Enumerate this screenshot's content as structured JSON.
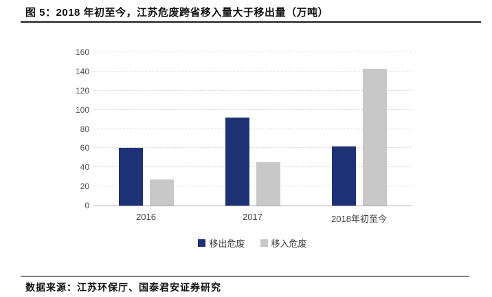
{
  "header": {
    "title": "图 5：2018 年初至今，江苏危废跨省移入量大于移出量（万吨）"
  },
  "footer": {
    "source": "数据来源：江苏环保厅、国泰君安证券研究"
  },
  "chart_data": {
    "type": "bar",
    "title": "2018 年初至今，江苏危废跨省移入量大于移出量（万吨）",
    "categories": [
      "2016",
      "2017",
      "2018年初至今"
    ],
    "series": [
      {
        "name": "移出危废",
        "color": "#1F3175",
        "values": [
          60,
          92,
          62
        ]
      },
      {
        "name": "移入危废",
        "color": "#C8C8C8",
        "values": [
          27,
          45,
          143
        ]
      }
    ],
    "xlabel": "",
    "ylabel": "",
    "ylim": [
      0,
      160
    ],
    "ytick_step": 20,
    "grid": "horizontal-dotted",
    "legend_position": "bottom-center",
    "colors": {
      "gridline": "#d4d4d4",
      "baseline": "#a6a6a6",
      "tick_text": "#4d4d4d"
    }
  }
}
